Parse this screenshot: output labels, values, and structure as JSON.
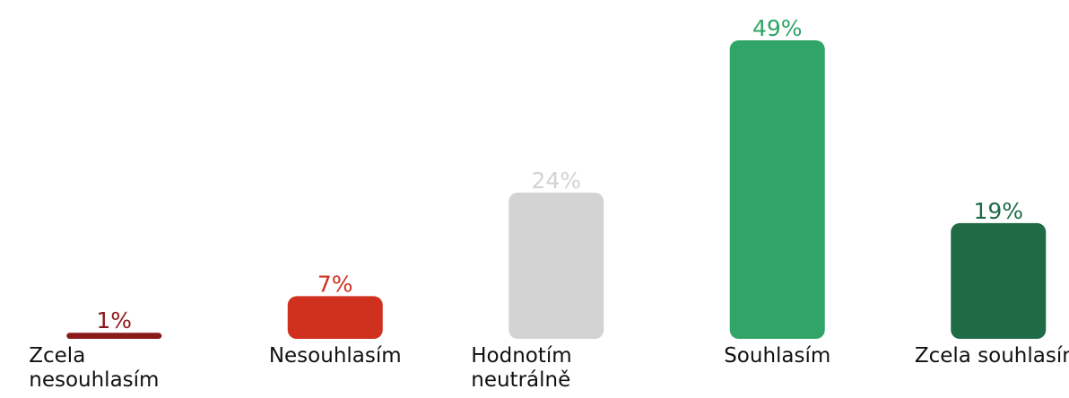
{
  "chart_data": {
    "type": "bar",
    "categories": [
      "Zcela nesouhlasím",
      "Nesouhlasím",
      "Hodnotím neutrálně",
      "Souhlasím",
      "Zcela souhlasím"
    ],
    "values": [
      1,
      7,
      24,
      49,
      19
    ],
    "value_labels": [
      "1%",
      "7%",
      "24%",
      "49%",
      "19%"
    ],
    "colors": [
      "#8b1a1a",
      "#d0301e",
      "#d3d3d3",
      "#31a467",
      "#1f6b45"
    ]
  }
}
